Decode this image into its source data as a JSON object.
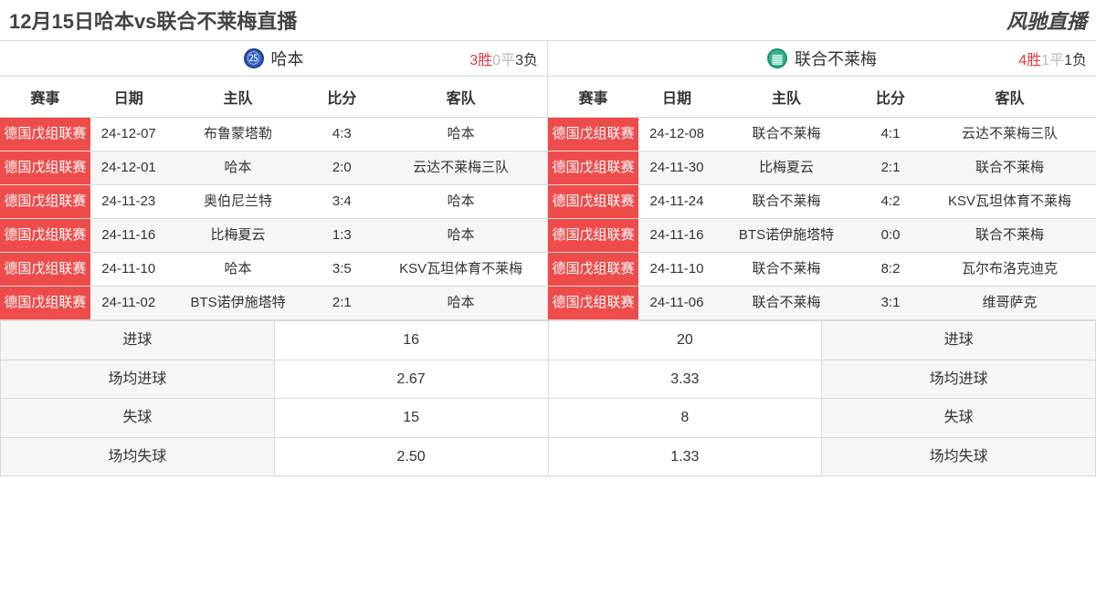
{
  "header": {
    "title": "12月15日哈本vs联合不莱梅直播",
    "site": "风驰直播"
  },
  "columns": {
    "league": "赛事",
    "date": "日期",
    "home": "主队",
    "score": "比分",
    "away": "客队"
  },
  "teams": {
    "a": {
      "name": "哈本",
      "logo_bg": "#2f5fbf",
      "record": {
        "win_n": "3",
        "win_t": "胜",
        "draw_n": "0",
        "draw_t": "平",
        "loss_n": "3",
        "loss_t": "负"
      },
      "matches": [
        {
          "league": "德国戊组联赛",
          "date": "24-12-07",
          "home": "布鲁蒙塔勒",
          "score": "4:3",
          "away": "哈本"
        },
        {
          "league": "德国戊组联赛",
          "date": "24-12-01",
          "home": "哈本",
          "score": "2:0",
          "away": "云达不莱梅三队"
        },
        {
          "league": "德国戊组联赛",
          "date": "24-11-23",
          "home": "奥伯尼兰特",
          "score": "3:4",
          "away": "哈本"
        },
        {
          "league": "德国戊组联赛",
          "date": "24-11-16",
          "home": "比梅夏云",
          "score": "1:3",
          "away": "哈本"
        },
        {
          "league": "德国戊组联赛",
          "date": "24-11-10",
          "home": "哈本",
          "score": "3:5",
          "away": "KSV瓦坦体育不莱梅"
        },
        {
          "league": "德国戊组联赛",
          "date": "24-11-02",
          "home": "BTS诺伊施塔特",
          "score": "2:1",
          "away": "哈本"
        }
      ]
    },
    "b": {
      "name": "联合不莱梅",
      "logo_bg": "#2fb48e",
      "record": {
        "win_n": "4",
        "win_t": "胜",
        "draw_n": "1",
        "draw_t": "平",
        "loss_n": "1",
        "loss_t": "负"
      },
      "matches": [
        {
          "league": "德国戊组联赛",
          "date": "24-12-08",
          "home": "联合不莱梅",
          "score": "4:1",
          "away": "云达不莱梅三队"
        },
        {
          "league": "德国戊组联赛",
          "date": "24-11-30",
          "home": "比梅夏云",
          "score": "2:1",
          "away": "联合不莱梅"
        },
        {
          "league": "德国戊组联赛",
          "date": "24-11-24",
          "home": "联合不莱梅",
          "score": "4:2",
          "away": "KSV瓦坦体育不莱梅"
        },
        {
          "league": "德国戊组联赛",
          "date": "24-11-16",
          "home": "BTS诺伊施塔特",
          "score": "0:0",
          "away": "联合不莱梅"
        },
        {
          "league": "德国戊组联赛",
          "date": "24-11-10",
          "home": "联合不莱梅",
          "score": "8:2",
          "away": "瓦尔布洛克迪克"
        },
        {
          "league": "德国戊组联赛",
          "date": "24-11-06",
          "home": "联合不莱梅",
          "score": "3:1",
          "away": "维哥萨克"
        }
      ]
    }
  },
  "summary": {
    "labels": {
      "goals": "进球",
      "avg_goals": "场均进球",
      "conceded": "失球",
      "avg_conceded": "场均失球"
    },
    "a": {
      "goals": "16",
      "avg_goals": "2.67",
      "conceded": "15",
      "avg_conceded": "2.50"
    },
    "b": {
      "goals": "20",
      "avg_goals": "3.33",
      "conceded": "8",
      "avg_conceded": "1.33"
    }
  },
  "colors": {
    "league_bg": "#ee4b4b",
    "win": "#e2373d",
    "draw": "#bbbbbb",
    "loss": "#333333",
    "row_even": "#f6f6f6",
    "border": "#d9d9d9"
  }
}
